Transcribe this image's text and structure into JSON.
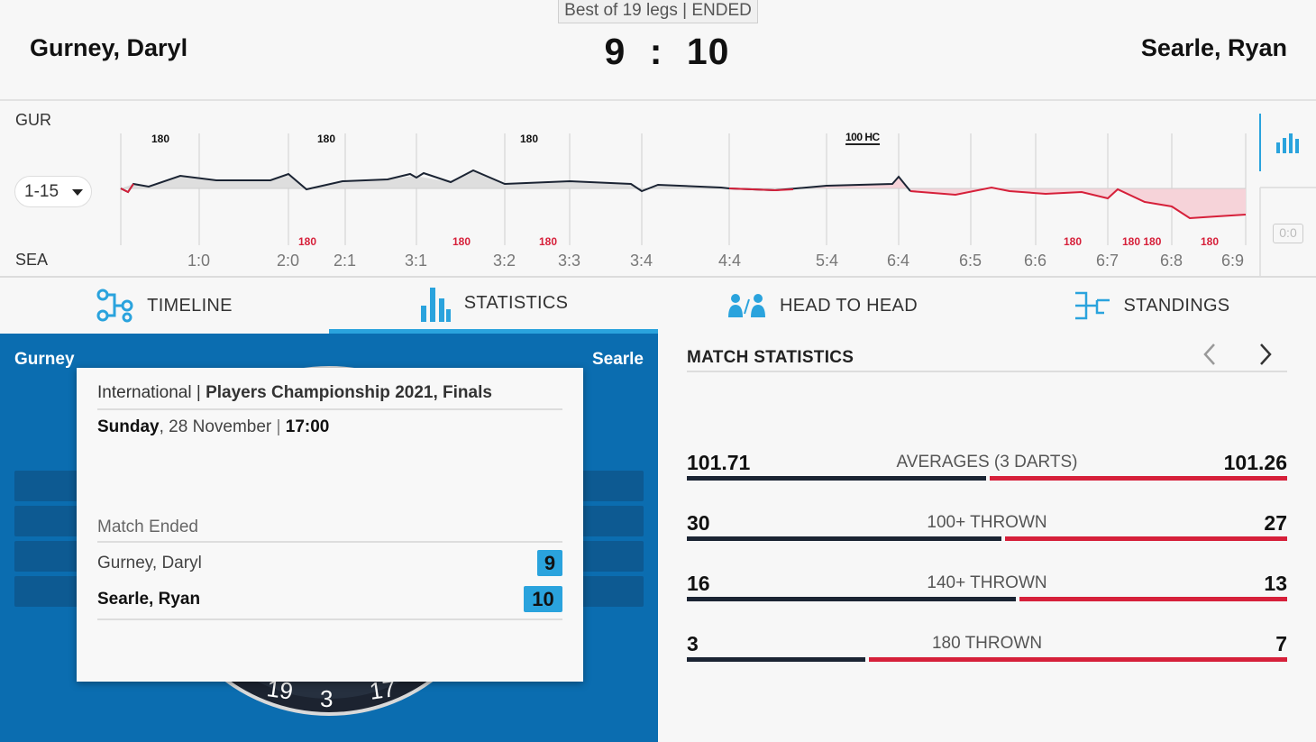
{
  "match": {
    "format": "Best of 19 legs | ENDED",
    "home_name": "Gurney, Daryl",
    "away_name": "Searle, Ryan",
    "home_score": "9",
    "away_score": "10",
    "score_separator": ":"
  },
  "graph": {
    "home_code": "GUR",
    "away_code": "SEA",
    "leg_range": "1-15",
    "leg_labels": [
      "1:0",
      "2:0",
      "2:1",
      "3:1",
      "3:2",
      "3:3",
      "3:4",
      "4:4",
      "5:4",
      "6:4",
      "6:5",
      "6:6",
      "6:7",
      "6:8",
      "6:9"
    ],
    "home_marks": [
      "180",
      "180",
      "180",
      "100 HC"
    ],
    "away_marks": [
      "180",
      "180",
      "180",
      "180",
      "180 180",
      "180"
    ],
    "zero_badge": "0:0"
  },
  "tabs": [
    {
      "label": "TIMELINE",
      "icon": "timeline-icon"
    },
    {
      "label": "STATISTICS",
      "icon": "bar-chart-icon",
      "active": true
    },
    {
      "label": "HEAD TO HEAD",
      "icon": "head-to-head-icon"
    },
    {
      "label": "STANDINGS",
      "icon": "standings-icon"
    }
  ],
  "panel": {
    "home_short": "Gurney",
    "away_short": "Searle",
    "board_numbers": [
      "19",
      "3",
      "17"
    ]
  },
  "card": {
    "category": "International",
    "sep": "|",
    "tournament": "Players Championship 2021, Finals",
    "day": "Sunday",
    "date": ", 28 November",
    "time": "17:00",
    "status": "Match Ended",
    "home_name": "Gurney, Daryl",
    "home_score": "9",
    "away_name": "Searle, Ryan",
    "away_score": "10"
  },
  "stats": {
    "title": "MATCH STATISTICS",
    "rows": [
      {
        "label": "AVERAGES (3 DARTS)",
        "home": "101.71",
        "away": "101.26",
        "home_share": 0.5011
      },
      {
        "label": "100+ THROWN",
        "home": "30",
        "away": "27",
        "home_share": 0.5263
      },
      {
        "label": "140+ THROWN",
        "home": "16",
        "away": "13",
        "home_share": 0.5517
      },
      {
        "label": "180 THROWN",
        "home": "3",
        "away": "7",
        "home_share": 0.3
      }
    ]
  },
  "colors": {
    "accent": "#2aa3dd",
    "home": "#1b2433",
    "away": "#d6203a",
    "panel": "#0b6db0"
  }
}
